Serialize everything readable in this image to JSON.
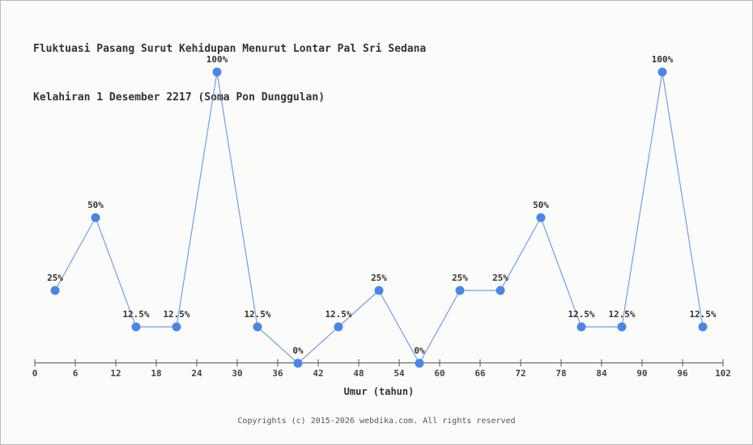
{
  "title": {
    "line1": "Fluktuasi Pasang Surut Kehidupan Menurut Lontar Pal Sri Sedana",
    "line2": "Kelahiran 1 Desember 2217 (Soma Pon Dunggulan)"
  },
  "footer": "Copyrights (c) 2015-2026 webdika.com. All rights reserved",
  "chart_data": {
    "type": "line",
    "title": "Fluktuasi Pasang Surut Kehidupan Menurut Lontar Pal Sri Sedana Kelahiran 1 Desember 2217 (Soma Pon Dunggulan)",
    "xlabel": "Umur (tahun)",
    "ylabel": "",
    "x": [
      3,
      9,
      15,
      21,
      27,
      33,
      39,
      45,
      51,
      57,
      63,
      69,
      75,
      81,
      87,
      93,
      99
    ],
    "values": [
      25,
      50,
      12.5,
      12.5,
      100,
      12.5,
      0,
      12.5,
      25,
      0,
      25,
      25,
      50,
      12.5,
      12.5,
      100,
      12.5
    ],
    "point_labels": [
      "25%",
      "50%",
      "12.5%",
      "12.5%",
      "100%",
      "12.5%",
      "0%",
      "12.5%",
      "25%",
      "0%",
      "25%",
      "25%",
      "50%",
      "12.5%",
      "12.5%",
      "100%",
      "12.5%"
    ],
    "x_ticks": [
      0,
      6,
      12,
      18,
      24,
      30,
      36,
      42,
      48,
      54,
      60,
      66,
      72,
      78,
      84,
      90,
      96,
      102
    ],
    "xlim": [
      0,
      102
    ],
    "ylim": [
      0,
      100
    ],
    "grid": false,
    "legend": false,
    "colors": {
      "line": "#6f9fe8",
      "marker": "#4a86e8",
      "axis": "#555555",
      "tick_label": "#444444",
      "point_label": "#333333",
      "title": "#333333",
      "background": "#fbfbfa"
    }
  }
}
